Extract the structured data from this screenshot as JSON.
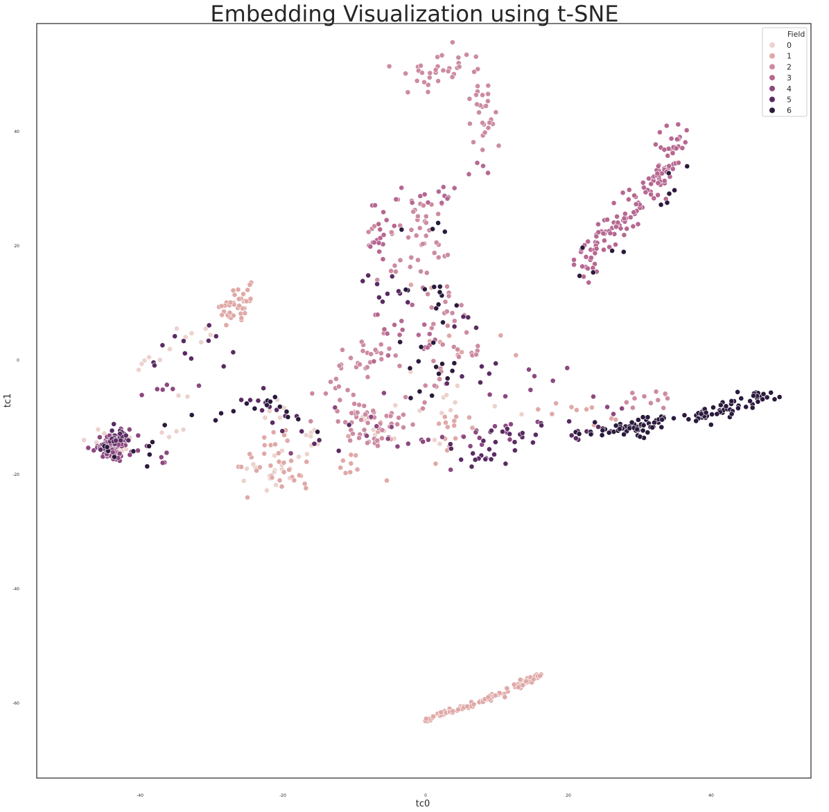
{
  "chart_data": {
    "type": "scatter",
    "title": "Embedding Visualization using t-SNE",
    "xlabel": "tc0",
    "ylabel": "tc1",
    "xlim": [
      -54,
      54
    ],
    "ylim": [
      -73,
      59
    ],
    "xticks": [
      -40,
      -20,
      0,
      20,
      40
    ],
    "yticks": [
      40,
      20,
      0,
      -20,
      -40,
      -60
    ],
    "grid": false,
    "legend": {
      "title": "Field",
      "placement": "top-right"
    },
    "series": [
      {
        "name": "0",
        "color": "#ecd2ce",
        "clusters": [
          {
            "points": [
              [
                -45.5,
                -14
              ],
              [
                -43,
                -15.5
              ],
              [
                -42.5,
                -13.5
              ],
              [
                -46,
                -12.5
              ],
              [
                -41.5,
                -16
              ]
            ],
            "spread": [
              2.2,
              1.8
            ],
            "count": 25
          },
          {
            "points": [
              [
                -22,
                -8
              ],
              [
                -19,
                -10
              ],
              [
                -16,
                -14
              ],
              [
                -23,
                -20
              ],
              [
                -21,
                -22
              ]
            ],
            "spread": [
              2.5,
              2.5
            ],
            "count": 30
          },
          {
            "points": [
              [
                -40,
                -2
              ],
              [
                -35,
                3
              ],
              [
                -30,
                4
              ],
              [
                -38,
                -14
              ],
              [
                -32,
                -10
              ]
            ],
            "spread": [
              3,
              2
            ],
            "count": 18
          },
          {
            "points": [
              [
                -5,
                -1
              ],
              [
                0,
                -17
              ],
              [
                4,
                -4
              ],
              [
                -9,
                -12
              ],
              [
                14,
                -9
              ]
            ],
            "spread": [
              3,
              3
            ],
            "count": 20
          }
        ]
      },
      {
        "name": "1",
        "color": "#dfa9a7",
        "clusters": [
          {
            "points": [
              [
                -27.5,
                10
              ],
              [
                -25,
                12
              ],
              [
                -26,
                8
              ],
              [
                -29,
                9
              ]
            ],
            "spread": [
              1.5,
              1.5
            ],
            "count": 40
          },
          {
            "points": [
              [
                -22,
                -12
              ],
              [
                -21,
                -17
              ],
              [
                -18,
                -22
              ],
              [
                -26,
                -17
              ]
            ],
            "spread": [
              3,
              3
            ],
            "count": 35
          },
          {
            "points": [
              [
                0,
                -63
              ],
              [
                5,
                -61
              ],
              [
                9,
                -59
              ],
              [
                13,
                -57
              ],
              [
                16,
                -55
              ]
            ],
            "spread": [
              0.6,
              0.5
            ],
            "count": 110
          },
          {
            "points": [
              [
                -8,
                -8
              ],
              [
                -6,
                -16
              ],
              [
                -12,
                -19
              ],
              [
                7,
                -8
              ],
              [
                2,
                -19
              ]
            ],
            "spread": [
              3,
              3
            ],
            "count": 30
          },
          {
            "points": [
              [
                18,
                -8
              ],
              [
                24,
                -10
              ],
              [
                28,
                -11
              ],
              [
                -1,
                15
              ],
              [
                4,
                -1
              ]
            ],
            "spread": [
              3,
              2
            ],
            "count": 20
          }
        ]
      },
      {
        "name": "2",
        "color": "#cc8ba1",
        "clusters": [
          {
            "points": [
              [
                -3,
                50
              ],
              [
                2,
                49
              ],
              [
                5,
                53
              ],
              [
                8,
                46
              ],
              [
                9,
                38
              ]
            ],
            "spread": [
              2.5,
              2.5
            ],
            "count": 60
          },
          {
            "points": [
              [
                -4,
                27
              ],
              [
                0,
                25
              ],
              [
                -8,
                22
              ],
              [
                3,
                20
              ],
              [
                -5,
                15
              ]
            ],
            "spread": [
              3,
              3
            ],
            "count": 45
          },
          {
            "points": [
              [
                -9,
                -13
              ],
              [
                -6,
                -14
              ],
              [
                -11,
                -9
              ],
              [
                -2,
                -10
              ],
              [
                3,
                -2
              ]
            ],
            "spread": [
              2.5,
              3
            ],
            "count": 60
          },
          {
            "points": [
              [
                -6,
                6
              ],
              [
                -10,
                -3
              ],
              [
                -5,
                2
              ],
              [
                -13,
                -4
              ],
              [
                -15,
                -12
              ]
            ],
            "spread": [
              3,
              3
            ],
            "count": 35
          },
          {
            "points": [
              [
                1,
                6
              ],
              [
                4,
                12
              ],
              [
                6,
                -1
              ],
              [
                -2,
                8
              ]
            ],
            "spread": [
              2.5,
              3
            ],
            "count": 25
          },
          {
            "points": [
              [
                31,
                -6
              ],
              [
                34,
                -7
              ],
              [
                27,
                -8
              ],
              [
                38,
                -5
              ]
            ],
            "spread": [
              2,
              1.5
            ],
            "count": 12
          }
        ]
      },
      {
        "name": "3",
        "color": "#b66891",
        "clusters": [
          {
            "points": [
              [
                22,
                16
              ],
              [
                25,
                21
              ],
              [
                28,
                25
              ],
              [
                31,
                29
              ],
              [
                34,
                34
              ],
              [
                35,
                40
              ]
            ],
            "spread": [
              2.2,
              2.2
            ],
            "count": 140
          },
          {
            "points": [
              [
                -6,
                25
              ],
              [
                -7,
                19
              ],
              [
                -4,
                28
              ],
              [
                4,
                30
              ],
              [
                8,
                35
              ]
            ],
            "spread": [
              2,
              2.5
            ],
            "count": 35
          },
          {
            "points": [
              [
                -2,
                12
              ],
              [
                1,
                2
              ],
              [
                -6,
                8
              ],
              [
                -8,
                -3
              ]
            ],
            "spread": [
              2.5,
              3
            ],
            "count": 20
          }
        ]
      },
      {
        "name": "4",
        "color": "#8c487f",
        "clusters": [
          {
            "points": [
              [
                -45,
                -14.5
              ],
              [
                -43.5,
                -15
              ],
              [
                -44,
                -13.5
              ],
              [
                -43,
                -16.5
              ],
              [
                -45.5,
                -16
              ]
            ],
            "spread": [
              2,
              1.8
            ],
            "count": 80
          },
          {
            "points": [
              [
                -38,
                -5
              ],
              [
                -34,
                -4
              ],
              [
                -42,
                -8
              ],
              [
                -39,
                -16
              ],
              [
                -34,
                -19
              ]
            ],
            "spread": [
              3,
              2
            ],
            "count": 14
          },
          {
            "points": [
              [
                -10,
                -6
              ],
              [
                -5,
                -16
              ],
              [
                6,
                -14
              ],
              [
                12,
                -12
              ],
              [
                -20,
                -16
              ]
            ],
            "spread": [
              3,
              3
            ],
            "count": 25
          },
          {
            "points": [
              [
                3,
                -20
              ],
              [
                13,
                1
              ],
              [
                30,
                -10
              ],
              [
                12,
                -2
              ]
            ],
            "spread": [
              3,
              2
            ],
            "count": 15
          }
        ]
      },
      {
        "name": "5",
        "color": "#5a2b62",
        "clusters": [
          {
            "points": [
              [
                -44,
                -14
              ],
              [
                -42.5,
                -13
              ],
              [
                -46,
                -15.5
              ]
            ],
            "spread": [
              1.5,
              1.5
            ],
            "count": 25
          },
          {
            "points": [
              [
                -40,
                -1
              ],
              [
                -30,
                4
              ],
              [
                -24,
                -6
              ],
              [
                -18,
                -12
              ],
              [
                -8,
                -13
              ]
            ],
            "spread": [
              3,
              3
            ],
            "count": 30
          },
          {
            "points": [
              [
                4,
                -15
              ],
              [
                8,
                -18
              ],
              [
                12,
                -12
              ],
              [
                18,
                -14
              ],
              [
                26,
                -11
              ]
            ],
            "spread": [
              3,
              2
            ],
            "count": 40
          },
          {
            "points": [
              [
                -9,
                14
              ],
              [
                -3,
                9
              ],
              [
                5,
                8
              ],
              [
                9,
                -2
              ],
              [
                -1,
                -6
              ]
            ],
            "spread": [
              3,
              3
            ],
            "count": 20
          }
        ]
      },
      {
        "name": "6",
        "color": "#2b1a3c",
        "clusters": [
          {
            "points": [
              [
                22,
                -13
              ],
              [
                28,
                -12
              ],
              [
                33,
                -11
              ],
              [
                38,
                -10
              ],
              [
                43,
                -8
              ],
              [
                48,
                -6
              ]
            ],
            "spread": [
              2,
              1.3
            ],
            "count": 120
          },
          {
            "points": [
              [
                -43,
                -15
              ],
              [
                -45,
                -19
              ],
              [
                -27,
                -8
              ],
              [
                -20,
                -8
              ],
              [
                -16,
                -11
              ]
            ],
            "spread": [
              2.5,
              2.5
            ],
            "count": 25
          },
          {
            "points": [
              [
                -7,
                13
              ],
              [
                4,
                12
              ],
              [
                -2,
                -4
              ],
              [
                5,
                -3
              ],
              [
                -4,
                3
              ]
            ],
            "spread": [
              3,
              3
            ],
            "count": 25
          },
          {
            "points": [
              [
                20,
                14
              ],
              [
                33,
                26
              ],
              [
                36,
                34
              ],
              [
                8,
                23
              ],
              [
                -6,
                23
              ]
            ],
            "spread": [
              2,
              2
            ],
            "count": 15
          }
        ]
      }
    ]
  }
}
